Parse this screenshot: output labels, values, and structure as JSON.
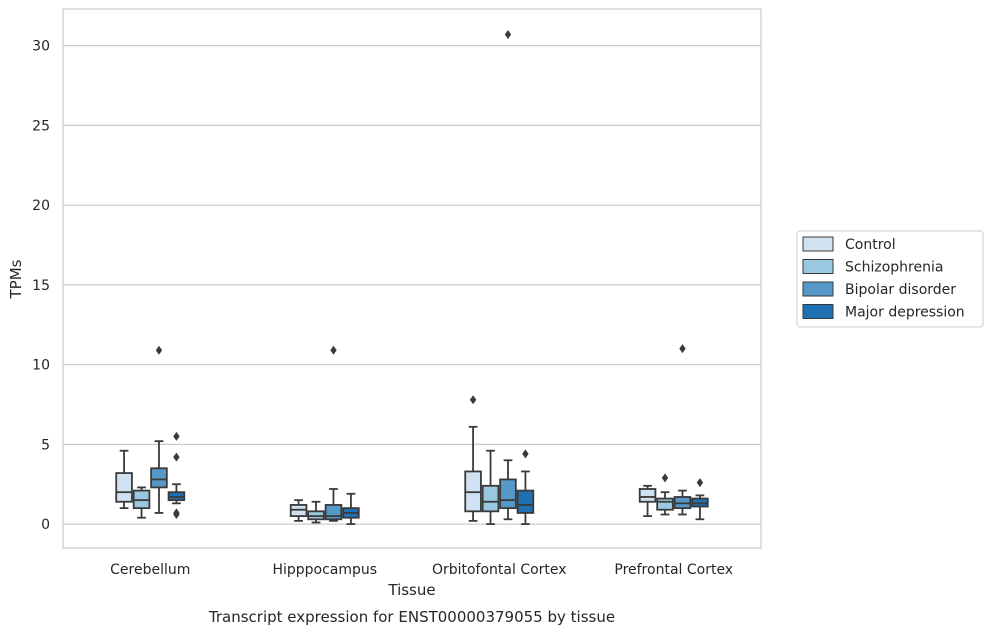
{
  "chart_data": {
    "type": "box",
    "xlabel": "Tissue",
    "ylabel": "TPMs",
    "caption": "Transcript expression for ENST00000379055 by tissue",
    "ylim": [
      -1.5,
      32.3
    ],
    "yticks": [
      0,
      5,
      10,
      15,
      20,
      25,
      30
    ],
    "grid": "horizontal",
    "legend_position": "right",
    "categories": [
      "Cerebellum",
      "Hipppocampus",
      "Orbitofontal Cortex",
      "Prefrontal Cortex"
    ],
    "series": [
      {
        "name": "Control",
        "color": "#d0e1f2",
        "boxes": [
          {
            "whisker_low": 1.0,
            "q1": 1.4,
            "median": 2.0,
            "q3": 3.2,
            "whisker_high": 4.6,
            "outliers": []
          },
          {
            "whisker_low": 0.2,
            "q1": 0.5,
            "median": 0.9,
            "q3": 1.2,
            "whisker_high": 1.5,
            "outliers": []
          },
          {
            "whisker_low": 0.2,
            "q1": 0.8,
            "median": 2.0,
            "q3": 3.3,
            "whisker_high": 6.1,
            "outliers": [
              7.8
            ]
          },
          {
            "whisker_low": 0.5,
            "q1": 1.4,
            "median": 1.7,
            "q3": 2.2,
            "whisker_high": 2.4,
            "outliers": []
          }
        ]
      },
      {
        "name": "Schizophrenia",
        "color": "#9ac8e0",
        "boxes": [
          {
            "whisker_low": 0.4,
            "q1": 1.0,
            "median": 1.5,
            "q3": 2.1,
            "whisker_high": 2.3,
            "outliers": []
          },
          {
            "whisker_low": 0.1,
            "q1": 0.3,
            "median": 0.5,
            "q3": 0.8,
            "whisker_high": 1.4,
            "outliers": []
          },
          {
            "whisker_low": 0.0,
            "q1": 0.8,
            "median": 1.4,
            "q3": 2.4,
            "whisker_high": 4.6,
            "outliers": []
          },
          {
            "whisker_low": 0.6,
            "q1": 0.9,
            "median": 1.4,
            "q3": 1.6,
            "whisker_high": 2.0,
            "outliers": [
              2.9
            ]
          }
        ]
      },
      {
        "name": "Bipolar disorder",
        "color": "#5699c9",
        "boxes": [
          {
            "whisker_low": 0.7,
            "q1": 2.3,
            "median": 2.8,
            "q3": 3.5,
            "whisker_high": 5.2,
            "outliers": [
              10.9
            ]
          },
          {
            "whisker_low": 0.2,
            "q1": 0.3,
            "median": 0.5,
            "q3": 1.2,
            "whisker_high": 2.2,
            "outliers": [
              10.9
            ]
          },
          {
            "whisker_low": 0.3,
            "q1": 1.0,
            "median": 1.5,
            "q3": 2.8,
            "whisker_high": 4.0,
            "outliers": [
              30.7
            ]
          },
          {
            "whisker_low": 0.6,
            "q1": 1.0,
            "median": 1.3,
            "q3": 1.7,
            "whisker_high": 2.1,
            "outliers": [
              11.0
            ]
          }
        ]
      },
      {
        "name": "Major depression",
        "color": "#2070b4",
        "boxes": [
          {
            "whisker_low": 1.3,
            "q1": 1.5,
            "median": 1.7,
            "q3": 2.0,
            "whisker_high": 2.5,
            "outliers": [
              5.5,
              4.2,
              0.7,
              0.6
            ]
          },
          {
            "whisker_low": 0.0,
            "q1": 0.4,
            "median": 0.7,
            "q3": 1.0,
            "whisker_high": 1.9,
            "outliers": []
          },
          {
            "whisker_low": 0.0,
            "q1": 0.7,
            "median": 1.2,
            "q3": 2.1,
            "whisker_high": 3.3,
            "outliers": [
              4.4
            ]
          },
          {
            "whisker_low": 0.3,
            "q1": 1.1,
            "median": 1.3,
            "q3": 1.6,
            "whisker_high": 1.8,
            "outliers": [
              2.6
            ]
          }
        ]
      }
    ]
  }
}
